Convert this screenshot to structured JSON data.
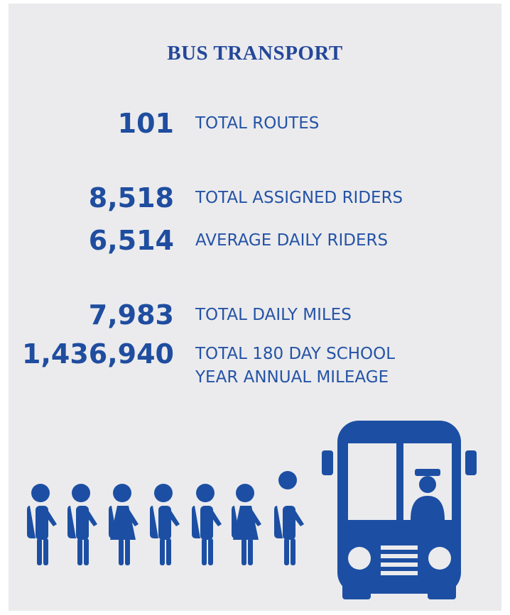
{
  "title": "BUS TRANSPORT",
  "stats": [
    {
      "value": "101",
      "label_lines": [
        "TOTAL ROUTES"
      ]
    },
    {
      "value": "8,518",
      "label_lines": [
        "TOTAL ASSIGNED RIDERS"
      ]
    },
    {
      "value": "6,514",
      "label_lines": [
        "AVERAGE DAILY RIDERS"
      ]
    },
    {
      "value": "7,983",
      "label_lines": [
        "TOTAL DAILY MILES"
      ]
    },
    {
      "value": "1,436,940",
      "label_lines": [
        "TOTAL 180 DAY SCHOOL",
        "YEAR ANNUAL MILEAGE"
      ]
    }
  ]
}
